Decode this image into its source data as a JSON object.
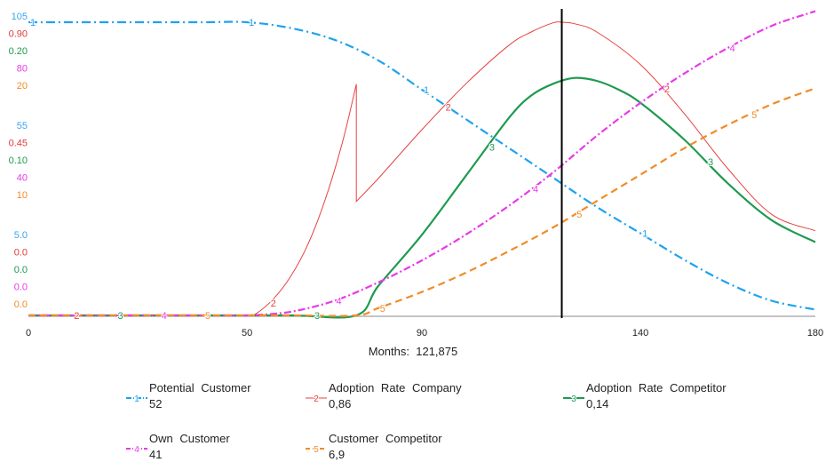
{
  "chart_data": {
    "type": "line",
    "x_label": "Months",
    "current_time": "121,875",
    "x_ticks": [
      "0",
      "50",
      "90",
      "140",
      "180"
    ],
    "xlim": [
      0,
      180
    ],
    "cursor_x": 122,
    "y_axis_labels": [
      {
        "color": "#3aa6f0",
        "ticks": [
          "105",
          "55",
          "5.0"
        ],
        "range": [
          5,
          105
        ]
      },
      {
        "color": "#e03a3a",
        "ticks": [
          "0.90",
          "0.45",
          "0.0"
        ],
        "range": [
          0,
          0.9
        ]
      },
      {
        "color": "#1f9a50",
        "ticks": [
          "0.20",
          "0.10",
          "0.0"
        ],
        "range": [
          0,
          0.2
        ]
      },
      {
        "color": "#e83ae8",
        "ticks": [
          "80",
          "40",
          "0.0"
        ],
        "range": [
          0,
          80
        ]
      },
      {
        "color": "#f08c28",
        "ticks": [
          "20",
          "10",
          "0.0"
        ],
        "range": [
          0,
          20
        ]
      }
    ],
    "series": [
      {
        "id": "1",
        "name": "Potential Customer",
        "color": "#1ea2f0",
        "dash": "10,4,2,4",
        "value": "52",
        "x": [
          0,
          20,
          40,
          50,
          60,
          70,
          80,
          90,
          100,
          110,
          120,
          130,
          140,
          150,
          160,
          170,
          180
        ],
        "y": [
          105,
          105,
          105,
          105,
          103,
          99,
          92,
          82,
          72,
          62,
          52,
          42,
          33,
          24,
          16,
          10,
          7
        ]
      },
      {
        "id": "2",
        "name": "Adoption Rate Company",
        "color": "#e84040",
        "dash": "",
        "value": "0,86",
        "x": [
          0,
          10,
          20,
          30,
          40,
          50,
          52,
          56,
          60,
          64,
          68,
          72,
          75,
          75.01,
          80,
          90,
          100,
          110,
          115,
          120,
          122,
          125,
          130,
          140,
          150,
          160,
          170,
          180
        ],
        "y": [
          0,
          0,
          0,
          0,
          0,
          0,
          0.005,
          0.05,
          0.12,
          0.22,
          0.36,
          0.54,
          0.71,
          0.35,
          0.42,
          0.57,
          0.71,
          0.83,
          0.87,
          0.898,
          0.9,
          0.895,
          0.87,
          0.77,
          0.62,
          0.45,
          0.31,
          0.26
        ]
      },
      {
        "id": "3",
        "name": "Adoption Rate Competitor",
        "color": "#1f9a50",
        "dash": "",
        "value": "0,14",
        "x": [
          0,
          20,
          40,
          60,
          75,
          80,
          90,
          100,
          110,
          115,
          120,
          125,
          130,
          135,
          140,
          150,
          160,
          170,
          180
        ],
        "y": [
          0,
          0,
          0,
          0,
          0,
          0.02,
          0.055,
          0.095,
          0.135,
          0.15,
          0.158,
          0.162,
          0.16,
          0.154,
          0.145,
          0.12,
          0.09,
          0.065,
          0.05
        ]
      },
      {
        "id": "4",
        "name": "Own Customer",
        "color": "#e83ae8",
        "dash": "8,3,2,3",
        "value": "41",
        "x": [
          0,
          20,
          40,
          50,
          60,
          70,
          80,
          90,
          100,
          110,
          120,
          130,
          140,
          150,
          160,
          170,
          180
        ],
        "y": [
          0,
          0,
          0,
          0,
          1,
          4,
          9,
          15,
          22,
          30,
          39,
          49,
          58,
          66,
          73,
          79,
          83
        ]
      },
      {
        "id": "5",
        "name": "Customer Competitor",
        "color": "#f08c28",
        "dash": "8,5",
        "value": "6,9",
        "x": [
          0,
          20,
          40,
          60,
          75,
          80,
          90,
          100,
          110,
          120,
          130,
          140,
          150,
          160,
          170,
          180
        ],
        "y": [
          0,
          0,
          0,
          0,
          0,
          0.5,
          1.6,
          2.9,
          4.4,
          6.0,
          7.8,
          9.6,
          11.4,
          13.0,
          14.4,
          15.5
        ]
      }
    ],
    "markers": [
      {
        "series": "1",
        "x": [
          0,
          50,
          90,
          140
        ]
      },
      {
        "series": "2",
        "x": [
          10,
          55,
          95,
          145
        ]
      },
      {
        "series": "3",
        "x": [
          20,
          65,
          105,
          155
        ]
      },
      {
        "series": "4",
        "x": [
          30,
          70,
          115,
          160
        ]
      },
      {
        "series": "5",
        "x": [
          40,
          80,
          125,
          165
        ]
      }
    ]
  }
}
